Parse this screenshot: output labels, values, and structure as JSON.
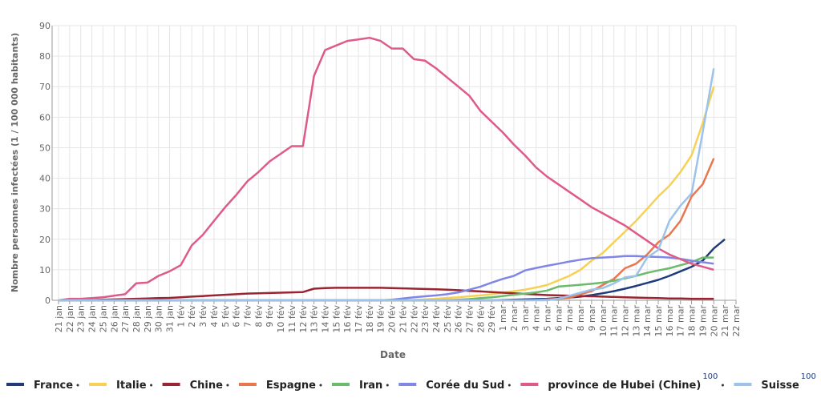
{
  "chart_data": {
    "type": "line",
    "ylabel": "Nombre personnes infectées (1 / 100 000 habitants)",
    "xlabel": "Date",
    "categories": [
      "21 jan",
      "22 jan",
      "23 jan",
      "24 jan",
      "25 jan",
      "26 jan",
      "27 jan",
      "28 jan",
      "29 jan",
      "30 jan",
      "31 jan",
      "1 fév",
      "2 fév",
      "3 fév",
      "4 fév",
      "5 fév",
      "6 fév",
      "7 fév",
      "8 fév",
      "9 fév",
      "10 fév",
      "11 fév",
      "12 fév",
      "13 fév",
      "14 fév",
      "15 fév",
      "16 fév",
      "17 fév",
      "18 fév",
      "19 fév",
      "20 fév",
      "21 fév",
      "22 fév",
      "23 fév",
      "24 fév",
      "25 fév",
      "26 fév",
      "27 fév",
      "28 fév",
      "29 fév",
      "1 mar",
      "2 mar",
      "3 mar",
      "4 mar",
      "5 mar",
      "6 mar",
      "7 mar",
      "8 mar",
      "9 mar",
      "10 mar",
      "11 mar",
      "12 mar",
      "13 mar",
      "14 mar",
      "15 mar",
      "16 mar",
      "17 mar",
      "18 mar",
      "19 mar",
      "20 mar",
      "21 mar",
      "22 mar"
    ],
    "ylim": [
      0,
      90
    ],
    "yticks": [
      0,
      10,
      20,
      30,
      40,
      50,
      60,
      70,
      80,
      90
    ],
    "grid": true,
    "series": [
      {
        "name": "France",
        "color": "#1f3b7c",
        "values": [
          0,
          0,
          0,
          0,
          0,
          0,
          0,
          0,
          0,
          0,
          0,
          0,
          0,
          0,
          0,
          0,
          0,
          0,
          0,
          0,
          0,
          0,
          0,
          0,
          0,
          0,
          0,
          0,
          0,
          0,
          0,
          0,
          0,
          0,
          0,
          0,
          0,
          0,
          0,
          0,
          0.1,
          0.2,
          0.3,
          0.4,
          0.5,
          0.7,
          0.9,
          1.2,
          1.7,
          2.3,
          3,
          3.8,
          4.7,
          5.7,
          6.7,
          8,
          9.5,
          11,
          13,
          17,
          20,
          null
        ]
      },
      {
        "name": "Italie",
        "color": "#f6d155",
        "values": [
          0,
          0,
          0,
          0,
          0,
          0,
          0,
          0,
          0,
          0,
          0,
          0,
          0,
          0,
          0,
          0,
          0,
          0,
          0,
          0,
          0,
          0,
          0,
          0,
          0,
          0,
          0,
          0,
          0,
          0,
          0,
          0,
          0.1,
          0.3,
          0.5,
          0.8,
          1,
          1.3,
          1.6,
          2,
          2.5,
          3,
          3.5,
          4.2,
          5,
          6.5,
          8,
          10,
          13,
          15.5,
          19,
          22.5,
          26,
          30,
          34,
          37.5,
          42,
          47.5,
          58,
          70,
          null,
          null
        ]
      },
      {
        "name": "Chine",
        "color": "#9a2530",
        "values": [
          0,
          0,
          0.1,
          0.1,
          0.2,
          0.3,
          0.4,
          0.5,
          0.6,
          0.7,
          0.8,
          1,
          1.2,
          1.4,
          1.6,
          1.8,
          2,
          2.2,
          2.3,
          2.4,
          2.5,
          2.6,
          2.7,
          3.8,
          4,
          4.1,
          4.1,
          4.1,
          4.1,
          4.1,
          4,
          3.9,
          3.8,
          3.7,
          3.6,
          3.5,
          3.3,
          3.1,
          2.9,
          2.7,
          2.5,
          2.3,
          2.1,
          1.9,
          1.7,
          1.6,
          1.5,
          1.4,
          1.3,
          1.2,
          1.1,
          1,
          0.9,
          0.8,
          0.7,
          0.6,
          0.6,
          0.5,
          0.5,
          0.5,
          null,
          null
        ]
      },
      {
        "name": "Espagne",
        "color": "#e8764f",
        "values": [
          0,
          0,
          0,
          0,
          0,
          0,
          0,
          0,
          0,
          0,
          0,
          0,
          0,
          0,
          0,
          0,
          0,
          0,
          0,
          0,
          0,
          0,
          0,
          0,
          0,
          0,
          0,
          0,
          0,
          0,
          0,
          0,
          0,
          0,
          0,
          0,
          0,
          0,
          0,
          0,
          0,
          0,
          0,
          0.1,
          0.3,
          0.5,
          0.8,
          2,
          3,
          5,
          7,
          10.5,
          12,
          15,
          19,
          21.5,
          26,
          34,
          38,
          46.5,
          null,
          null
        ]
      },
      {
        "name": "Iran",
        "color": "#6cba6b",
        "values": [
          0,
          0,
          0,
          0,
          0,
          0,
          0,
          0,
          0,
          0,
          0,
          0,
          0,
          0,
          0,
          0,
          0,
          0,
          0,
          0,
          0,
          0,
          0,
          0,
          0,
          0,
          0,
          0,
          0,
          0,
          0,
          0,
          0,
          0,
          0,
          0.1,
          0.2,
          0.4,
          0.7,
          1,
          1.4,
          1.8,
          2.2,
          2.6,
          3.2,
          4.5,
          4.8,
          5.1,
          5.4,
          5.8,
          6.4,
          7.2,
          8,
          9,
          9.8,
          10.5,
          11.5,
          12.5,
          14,
          14,
          null,
          null
        ]
      },
      {
        "name": "Corée du Sud",
        "color": "#8086e6",
        "values": [
          0,
          0,
          0,
          0,
          0,
          0,
          0,
          0,
          0,
          0,
          0,
          0,
          0,
          0,
          0,
          0,
          0,
          0,
          0,
          0,
          0,
          0,
          0,
          0,
          0,
          0,
          0,
          0,
          0,
          0,
          0.2,
          0.6,
          1,
          1.3,
          1.6,
          2,
          2.6,
          3.5,
          4.5,
          5.8,
          7,
          8,
          9.8,
          10.6,
          11.3,
          12,
          12.7,
          13.3,
          13.8,
          14,
          14.2,
          14.5,
          14.5,
          14.3,
          14.2,
          14,
          13.6,
          13,
          12.5,
          12,
          null,
          null
        ]
      },
      {
        "name": "province de Hubei (Chine)",
        "note": "100",
        "color": "#de5a8b",
        "values": [
          0,
          0.5,
          0.5,
          0.7,
          1,
          1.5,
          2,
          5.6,
          5.8,
          8,
          9.5,
          11.5,
          18,
          21.5,
          26,
          30.5,
          34.5,
          39,
          42,
          45.5,
          48,
          50.5,
          50.5,
          73.5,
          82,
          83.5,
          85,
          85.5,
          86,
          85,
          82.5,
          82.5,
          79,
          78.5,
          76,
          73,
          70,
          67,
          62,
          58.5,
          55,
          51,
          47.5,
          43.5,
          40.5,
          38,
          35.5,
          33,
          30.5,
          28.5,
          26.5,
          24.5,
          22,
          19.5,
          17,
          15,
          13.5,
          12,
          11,
          10,
          null,
          null
        ]
      },
      {
        "name": "Suisse",
        "note": "100",
        "color": "#9cc3ec",
        "values": [
          0,
          0,
          0,
          0,
          0,
          0,
          0,
          0,
          0,
          0,
          0,
          0,
          0,
          0,
          0,
          0,
          0,
          0,
          0,
          0,
          0,
          0,
          0,
          0,
          0,
          0,
          0,
          0,
          0,
          0,
          0,
          0,
          0,
          0,
          0,
          0,
          0,
          0,
          0,
          0,
          0,
          0,
          0,
          0,
          0,
          0.5,
          1.5,
          2.5,
          3.5,
          4,
          5.5,
          7.5,
          8,
          14,
          16.5,
          26,
          31,
          35,
          55,
          76,
          null,
          null
        ]
      }
    ]
  }
}
